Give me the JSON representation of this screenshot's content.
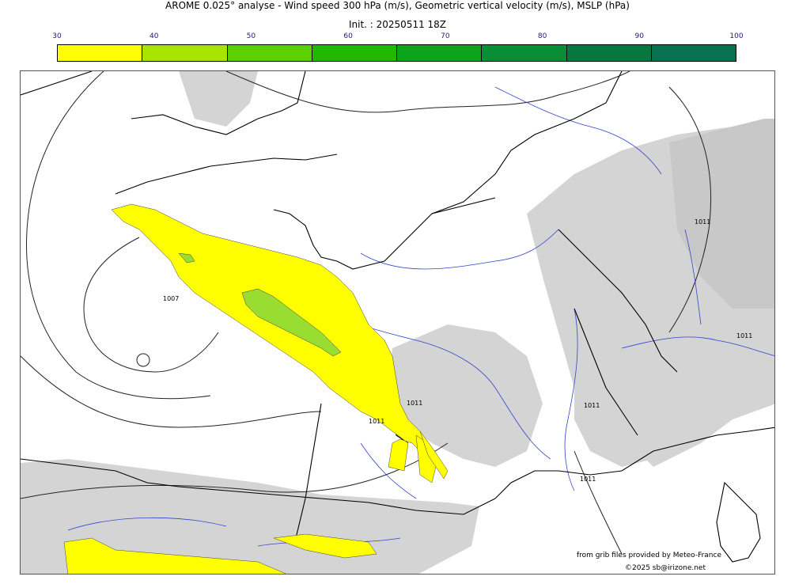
{
  "title": "AROME 0.025° analyse - Wind speed 300 hPa (m/s), Geometric vertical velocity (m/s), MSLP (hPa)",
  "init": "Init. : 20250511 18Z",
  "colorbar": {
    "ticks": [
      "30",
      "40",
      "50",
      "60",
      "70",
      "80",
      "90",
      "100"
    ],
    "colors": [
      "#ffff00",
      "#a8e400",
      "#5cd000",
      "#22b800",
      "#0aa51c",
      "#0a8d35",
      "#08773f",
      "#08714f"
    ]
  },
  "contour_labels": [
    "1007",
    "1011",
    "1011",
    "1011",
    "1011",
    "1011",
    "1011"
  ],
  "credits": {
    "line1": "from grib files provided by Meteo-France",
    "line2": "©2025 sb@irizone.net"
  },
  "colors": {
    "coast": "#000000",
    "rivers": "#3333cc",
    "isobar": "#222222",
    "terrain_gray": "#d0d0d0",
    "wind_yellow": "#ffff00",
    "wind_green": "#99dd33"
  }
}
